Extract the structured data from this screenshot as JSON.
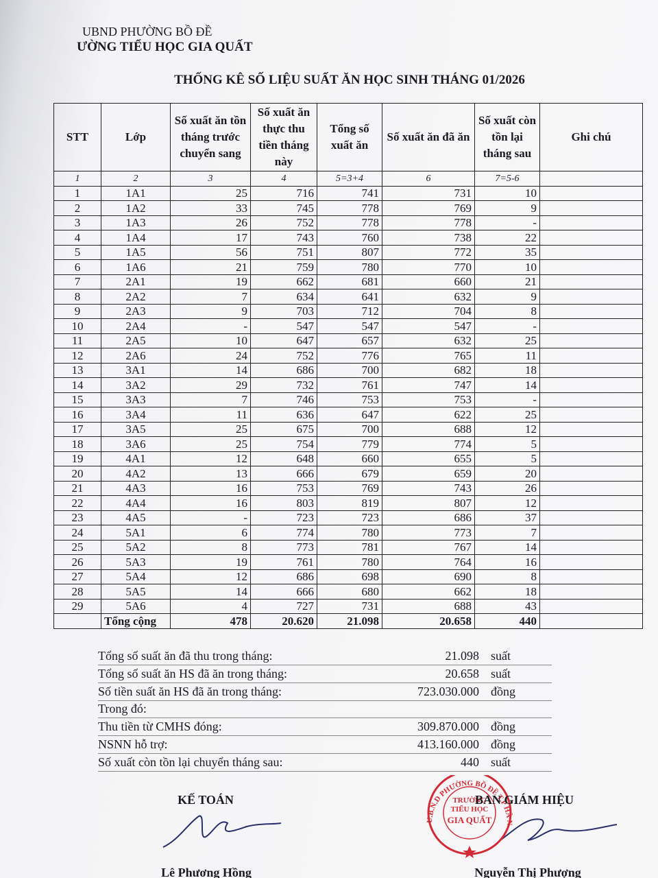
{
  "header": {
    "authority": "UBND PHƯỜNG BỒ ĐỀ",
    "school": "ƯỜNG TIỂU HỌC GIA QUẤT"
  },
  "title": "THỐNG KÊ SỐ LIỆU SUẤT ĂN HỌC SINH THÁNG 01/2026",
  "table": {
    "columns": [
      "STT",
      "Lớp",
      "Số xuất ăn tồn tháng trước chuyển sang",
      "Số xuất ăn thực thu tiền tháng này",
      "Tổng số xuất ăn",
      "Số xuất ăn đã ăn",
      "Số xuất còn tồn lại tháng sau",
      "Ghi chú"
    ],
    "numbering": [
      "1",
      "2",
      "3",
      "4",
      "5=3+4",
      "6",
      "7=5-6"
    ],
    "rows": [
      [
        "1",
        "1A1",
        "25",
        "716",
        "741",
        "731",
        "10"
      ],
      [
        "2",
        "1A2",
        "33",
        "745",
        "778",
        "769",
        "9"
      ],
      [
        "3",
        "1A3",
        "26",
        "752",
        "778",
        "778",
        "-"
      ],
      [
        "4",
        "1A4",
        "17",
        "743",
        "760",
        "738",
        "22"
      ],
      [
        "5",
        "1A5",
        "56",
        "751",
        "807",
        "772",
        "35"
      ],
      [
        "6",
        "1A6",
        "21",
        "759",
        "780",
        "770",
        "10"
      ],
      [
        "7",
        "2A1",
        "19",
        "662",
        "681",
        "660",
        "21"
      ],
      [
        "8",
        "2A2",
        "7",
        "634",
        "641",
        "632",
        "9"
      ],
      [
        "9",
        "2A3",
        "9",
        "703",
        "712",
        "704",
        "8"
      ],
      [
        "10",
        "2A4",
        "-",
        "547",
        "547",
        "547",
        "-"
      ],
      [
        "11",
        "2A5",
        "10",
        "647",
        "657",
        "632",
        "25"
      ],
      [
        "12",
        "2A6",
        "24",
        "752",
        "776",
        "765",
        "11"
      ],
      [
        "13",
        "3A1",
        "14",
        "686",
        "700",
        "682",
        "18"
      ],
      [
        "14",
        "3A2",
        "29",
        "732",
        "761",
        "747",
        "14"
      ],
      [
        "15",
        "3A3",
        "7",
        "746",
        "753",
        "753",
        "-"
      ],
      [
        "16",
        "3A4",
        "11",
        "636",
        "647",
        "622",
        "25"
      ],
      [
        "17",
        "3A5",
        "25",
        "675",
        "700",
        "688",
        "12"
      ],
      [
        "18",
        "3A6",
        "25",
        "754",
        "779",
        "774",
        "5"
      ],
      [
        "19",
        "4A1",
        "12",
        "648",
        "660",
        "655",
        "5"
      ],
      [
        "20",
        "4A2",
        "13",
        "666",
        "679",
        "659",
        "20"
      ],
      [
        "21",
        "4A3",
        "16",
        "753",
        "769",
        "743",
        "26"
      ],
      [
        "22",
        "4A4",
        "16",
        "803",
        "819",
        "807",
        "12"
      ],
      [
        "23",
        "4A5",
        "-",
        "723",
        "723",
        "686",
        "37"
      ],
      [
        "24",
        "5A1",
        "6",
        "774",
        "780",
        "773",
        "7"
      ],
      [
        "25",
        "5A2",
        "8",
        "773",
        "781",
        "767",
        "14"
      ],
      [
        "26",
        "5A3",
        "19",
        "761",
        "780",
        "764",
        "16"
      ],
      [
        "27",
        "5A4",
        "12",
        "686",
        "698",
        "690",
        "8"
      ],
      [
        "28",
        "5A5",
        "14",
        "666",
        "680",
        "662",
        "18"
      ],
      [
        "29",
        "5A6",
        "4",
        "727",
        "731",
        "688",
        "43"
      ]
    ],
    "total": {
      "label": "Tổng cộng",
      "values": [
        "478",
        "20.620",
        "21.098",
        "20.658",
        "440"
      ]
    }
  },
  "summary": [
    {
      "label": "Tổng số suất ăn đã thu trong tháng:",
      "value": "21.098",
      "unit": "suất"
    },
    {
      "label": "Tổng số suất ăn HS đã ăn trong tháng:",
      "value": "20.658",
      "unit": "suất"
    },
    {
      "label": "Số tiền suất ăn HS đã ăn trong tháng:",
      "value": "723.030.000",
      "unit": "đồng"
    },
    {
      "label": "Trong đó:"
    },
    {
      "label": "Thu tiền từ CMHS đóng:",
      "value": "309.870.000",
      "unit": "đồng"
    },
    {
      "label": "NSNN hỗ trợ:",
      "value": "413.160.000",
      "unit": "đồng"
    },
    {
      "label": "Số xuất còn tồn lại chuyển tháng sau:",
      "value": "440",
      "unit": "suất"
    }
  ],
  "signatures": [
    {
      "title": "KẾ TOÁN",
      "name": "Lê Phương Hồng"
    },
    {
      "title": "BAN GIÁM HIỆU",
      "name": "Nguyễn Thị Phượng"
    }
  ],
  "stamp": {
    "outer": "U.B.N.D PHƯỜNG BỒ ĐỀ T.P HÀ NỘI",
    "inner": [
      "TRƯỜNG",
      "TIỂU HỌC",
      "GIA QUẤT"
    ]
  }
}
